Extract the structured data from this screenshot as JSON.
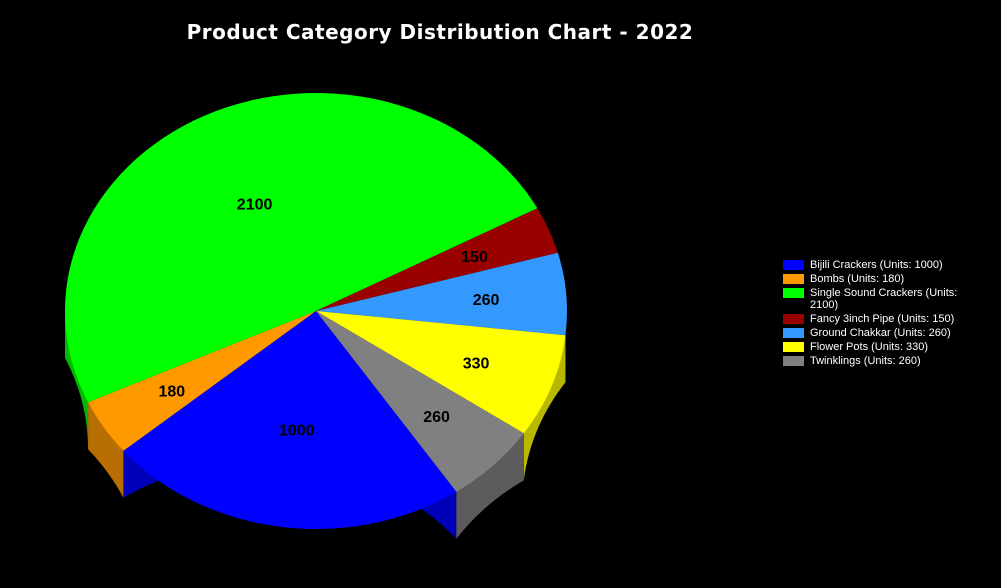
{
  "chart_data": {
    "type": "pie",
    "title": "Product Category Distribution Chart - 2022",
    "categories": [
      "Bijili Crackers",
      "Bombs",
      "Single Sound Crackers",
      "Fancy 3inch Pipe",
      "Ground Chakkar",
      "Flower Pots",
      "Twinklings"
    ],
    "values": [
      1000,
      180,
      2100,
      150,
      260,
      330,
      260
    ],
    "data_labels": [
      "1000",
      "180",
      "2100",
      "150",
      "260",
      "330",
      "260"
    ],
    "colors": [
      "#0000FF",
      "#FF9900",
      "#00FF00",
      "#990000",
      "#3399FF",
      "#FFFF00",
      "#808080"
    ],
    "legend": {
      "placement": "right",
      "entries": [
        "Bijili Crackers (Units: 1000)",
        "Bombs (Units: 180)",
        "Single Sound Crackers (Units: 2100)",
        "Fancy 3inch Pipe (Units: 150)",
        "Ground Chakkar (Units: 260)",
        "Flower Pots (Units: 330)",
        "Twinklings (Units: 260)"
      ]
    },
    "style": "3d",
    "background": "#000000"
  }
}
